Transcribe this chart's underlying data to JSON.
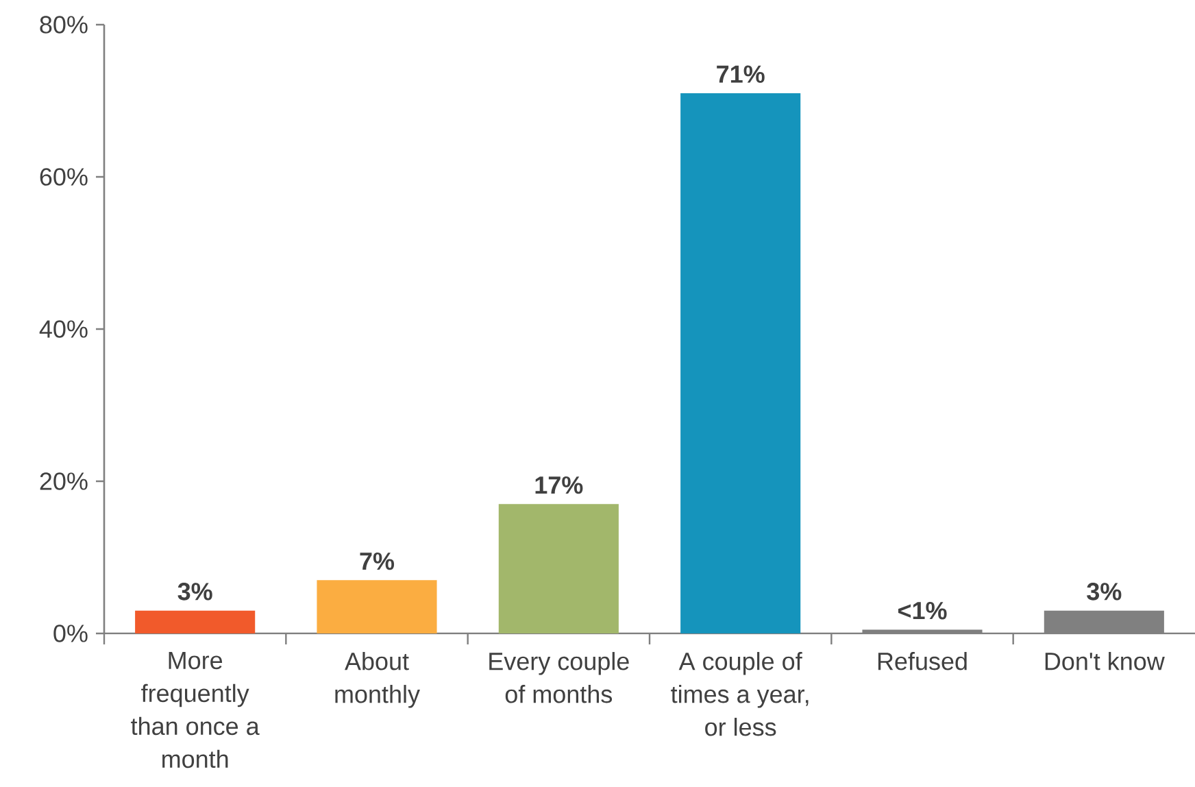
{
  "chart_data": {
    "type": "bar",
    "categories": [
      "More frequently than once a month",
      "About monthly",
      "Every couple of months",
      "A couple of times a year, or less",
      "Refused",
      "Don't know"
    ],
    "values": [
      3,
      7,
      17,
      71,
      0.5,
      3
    ],
    "colors": [
      "#f15a2b",
      "#fbad41",
      "#a2b76b",
      "#1594bc",
      "#7f7f7f",
      "#808080"
    ],
    "value_labels": [
      "3%",
      "7%",
      "17%",
      "71%",
      "<1%",
      "3%"
    ],
    "ylim": [
      0,
      80
    ],
    "yticks": [
      {
        "value": 0,
        "label": "0%"
      },
      {
        "value": 20,
        "label": "20%"
      },
      {
        "value": 40,
        "label": "40%"
      },
      {
        "value": 60,
        "label": "60%"
      },
      {
        "value": 80,
        "label": "80%"
      }
    ]
  }
}
